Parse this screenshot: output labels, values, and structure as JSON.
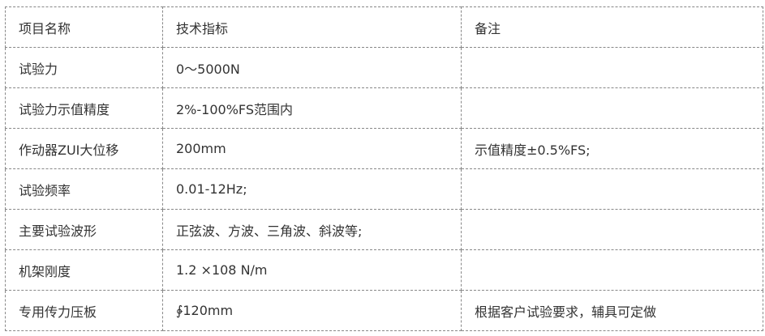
{
  "table": {
    "rows": [
      [
        "项目名称",
        "技术指标",
        "备注"
      ],
      [
        "试验力",
        "0～5000N",
        ""
      ],
      [
        "试验力示值精度",
        "2%-100%FS范围内",
        ""
      ],
      [
        "作动器ZUI大位移",
        "200mm",
        "示值精度±0.5%FS;"
      ],
      [
        "试验频率",
        "0.01-12Hz;",
        ""
      ],
      [
        "主要试验波形",
        "正弦波、方波、三角波、斜波等;",
        ""
      ],
      [
        "机架刚度",
        "1.2 ×108 N/m",
        ""
      ],
      [
        "专用传力压板",
        "∲120mm",
        "根据客户试验要求，辅具可定做"
      ]
    ]
  }
}
